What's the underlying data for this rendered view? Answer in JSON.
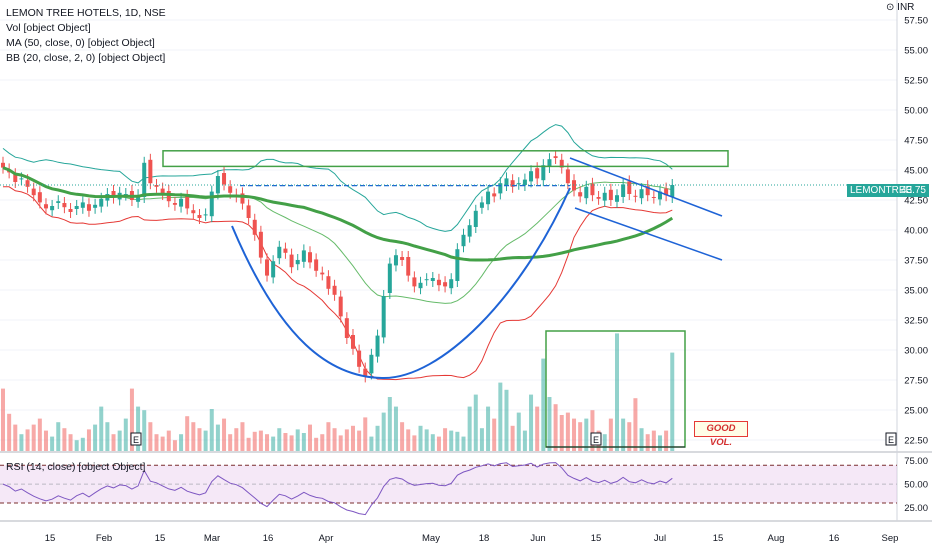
{
  "legend": {
    "title": "LEMON TREE HOTELS, 1D, NSE",
    "vol": "Vol [object Object]",
    "ma": "MA (50, close, 0) [object Object]",
    "bb": "BB (20, close, 2, 0) [object Object]",
    "rsi": "RSI (14, close) [object Object]"
  },
  "currency_label": "INR",
  "price_tag": {
    "symbol": "LEMONTREE",
    "value": "43.75",
    "color": "#26a69a"
  },
  "annotation": "GOOD VOL.",
  "colors": {
    "up": "#26a69a",
    "down": "#ef5350",
    "ma": "#43a047",
    "bb_upper": "#26a69a",
    "bb_lower": "#e53935",
    "bb_basis": "#66bb6a",
    "rsi": "#7e57c2",
    "cup": "#1e63d6",
    "box": "#43a047"
  },
  "chart_data": {
    "type": "candlestick",
    "title": "LEMON TREE HOTELS, 1D, NSE",
    "price_axis": {
      "ticks": [
        "57.50",
        "55.00",
        "52.50",
        "50.00",
        "47.50",
        "45.00",
        "42.50",
        "40.00",
        "37.50",
        "35.00",
        "32.50",
        "30.00",
        "27.50",
        "25.00",
        "22.50"
      ],
      "range": [
        21.5,
        58.5
      ]
    },
    "time_axis": {
      "labels": [
        "15",
        "Feb",
        "15",
        "Mar",
        "16",
        "Apr",
        "May",
        "18",
        "Jun",
        "15",
        "Jul",
        "15",
        "Aug",
        "16",
        "Sep"
      ]
    },
    "rsi_axis": {
      "ticks": [
        "75.00",
        "50.00",
        "25.00"
      ],
      "overbought": 70,
      "oversold": 30
    },
    "close": [
      45.2,
      44.8,
      44.0,
      44.3,
      43.6,
      42.9,
      42.3,
      41.8,
      42.0,
      42.4,
      41.9,
      41.5,
      42.0,
      42.3,
      41.6,
      42.1,
      42.6,
      43.0,
      42.7,
      43.1,
      43.0,
      42.5,
      42.9,
      45.6,
      43.9,
      43.6,
      43.0,
      42.4,
      42.1,
      42.6,
      41.8,
      41.4,
      41.0,
      41.3,
      43.2,
      44.5,
      43.8,
      43.1,
      42.8,
      42.2,
      41.0,
      39.6,
      37.7,
      36.2,
      37.4,
      38.6,
      38.1,
      36.9,
      37.5,
      38.3,
      37.3,
      36.6,
      36.3,
      35.1,
      34.6,
      32.8,
      31.0,
      30.1,
      28.6,
      27.8,
      29.6,
      31.2,
      34.5,
      37.2,
      37.9,
      37.5,
      36.2,
      35.3,
      35.6,
      35.9,
      36.0,
      35.4,
      35.3,
      35.9,
      38.4,
      39.6,
      40.4,
      41.6,
      42.3,
      43.2,
      42.8,
      43.9,
      44.3,
      43.6,
      43.9,
      44.2,
      44.9,
      44.3,
      45.4,
      45.9,
      46.0,
      45.2,
      43.9,
      43.3,
      42.8,
      43.6,
      42.9,
      42.6,
      43.1,
      42.5,
      42.9,
      43.8,
      43.0,
      42.8,
      43.4,
      42.9,
      42.7,
      43.2,
      42.9,
      43.75
    ],
    "volume": [
      0.52,
      0.31,
      0.22,
      0.14,
      0.18,
      0.22,
      0.27,
      0.17,
      0.12,
      0.24,
      0.19,
      0.14,
      0.09,
      0.11,
      0.18,
      0.22,
      0.37,
      0.24,
      0.14,
      0.17,
      0.27,
      0.52,
      0.37,
      0.34,
      0.24,
      0.14,
      0.12,
      0.17,
      0.09,
      0.14,
      0.29,
      0.24,
      0.19,
      0.17,
      0.35,
      0.22,
      0.27,
      0.14,
      0.19,
      0.24,
      0.11,
      0.16,
      0.17,
      0.14,
      0.12,
      0.19,
      0.15,
      0.13,
      0.18,
      0.15,
      0.22,
      0.11,
      0.14,
      0.24,
      0.19,
      0.13,
      0.18,
      0.21,
      0.17,
      0.28,
      0.12,
      0.21,
      0.32,
      0.45,
      0.37,
      0.24,
      0.18,
      0.13,
      0.21,
      0.18,
      0.14,
      0.12,
      0.19,
      0.17,
      0.16,
      0.12,
      0.37,
      0.47,
      0.19,
      0.37,
      0.27,
      0.57,
      0.51,
      0.21,
      0.32,
      0.17,
      0.47,
      0.37,
      0.77,
      0.45,
      0.39,
      0.3,
      0.32,
      0.27,
      0.24,
      0.27,
      0.34,
      0.17,
      0.14,
      0.27,
      0.98,
      0.27,
      0.24,
      0.44,
      0.19,
      0.14,
      0.17,
      0.13,
      0.17,
      0.82
    ]
  }
}
